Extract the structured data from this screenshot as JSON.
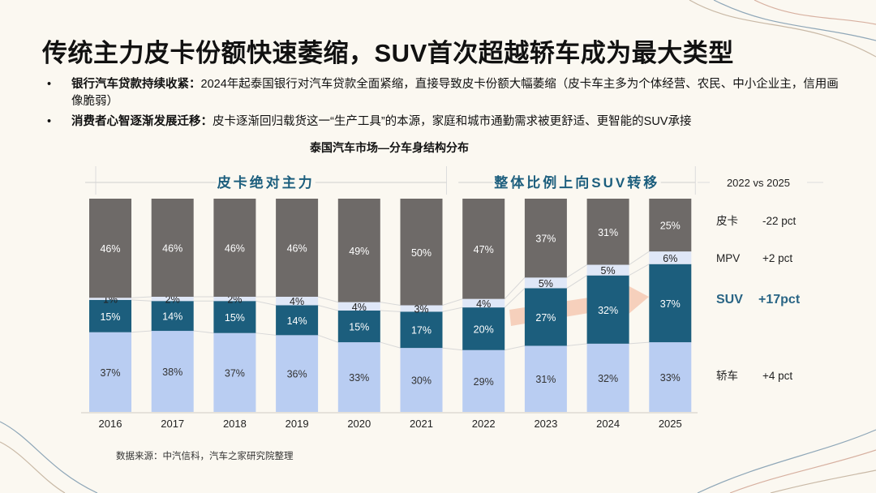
{
  "title": "传统主力皮卡份额快速萎缩，SUV首次超越轿车成为最大类型",
  "bullets": [
    {
      "bold": "银行汽车贷款持续收紧：",
      "text": "2024年起泰国银行对汽车贷款全面紧缩，直接导致皮卡份额大幅萎缩（皮卡车主多为个体经营、农民、中小企业主，信用画像脆弱）"
    },
    {
      "bold": "消费者心智逐渐发展迁移：",
      "text": "皮卡逐渐回归载货这一“生产工具”的本源，家庭和城市通勤需求被更舒适、更智能的SUV承接"
    }
  ],
  "bullet_symbol": "•",
  "source": "数据来源：中汽信科，汽车之家研究院整理",
  "chart_data": {
    "type": "bar",
    "stacked": true,
    "title": "泰国汽车市场—分车身结构分布",
    "categories": [
      "2016",
      "2017",
      "2018",
      "2019",
      "2020",
      "2021",
      "2022",
      "2023",
      "2024",
      "2025"
    ],
    "series": [
      {
        "name": "轿车",
        "color": "#b9cdf2",
        "label_color": "#333333",
        "values": [
          37,
          38,
          37,
          36,
          33,
          30,
          29,
          31,
          32,
          33
        ]
      },
      {
        "name": "SUV",
        "color": "#1c5e7d",
        "label_color": "#ffffff",
        "values": [
          15,
          14,
          15,
          14,
          15,
          17,
          20,
          27,
          32,
          37
        ]
      },
      {
        "name": "MPV",
        "color": "#dfe7f7",
        "label_color": "#222222",
        "values": [
          1,
          2,
          2,
          4,
          4,
          3,
          4,
          5,
          5,
          6
        ]
      },
      {
        "name": "皮卡",
        "color": "#6e6a68",
        "label_color": "#ffffff",
        "values": [
          46,
          46,
          46,
          46,
          49,
          50,
          47,
          37,
          31,
          25
        ]
      }
    ],
    "periods": [
      {
        "label": "皮卡绝对主力",
        "from": "2016",
        "to": "2021"
      },
      {
        "label": "整体比例上向SUV转移",
        "from": "2022",
        "to": "2025"
      }
    ],
    "comparison": {
      "header": "2022 vs 2025",
      "rows": [
        {
          "name": "皮卡",
          "change": "-22 pct"
        },
        {
          "name": "MPV",
          "change": "+2 pct"
        },
        {
          "name": "SUV",
          "change": "+17pct",
          "highlight": true
        },
        {
          "name": "轿车",
          "change": "+4 pct"
        }
      ]
    },
    "colors": {
      "accent": "#1c5e7d",
      "arrow": "#f5c9b3"
    }
  }
}
